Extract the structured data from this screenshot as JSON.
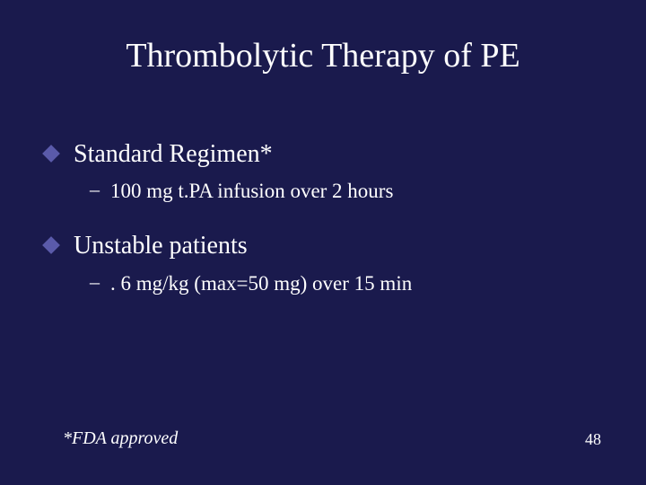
{
  "slide": {
    "title": "Thrombolytic Therapy of PE",
    "background_color": "#1a1a4d",
    "text_color": "#ffffff",
    "diamond_color": "#5a5aaa",
    "title_fontsize": 38,
    "bullet_fontsize": 28,
    "sub_fontsize": 23,
    "footnote_fontsize": 20,
    "pagenum_fontsize": 18,
    "bullets": [
      {
        "text": "Standard Regimen*",
        "sub": "100 mg t.PA infusion over 2 hours"
      },
      {
        "text": "Unstable patients",
        "sub": ". 6 mg/kg (max=50 mg) over 15 min"
      }
    ],
    "footnote": "*FDA approved",
    "page_number": "48"
  }
}
